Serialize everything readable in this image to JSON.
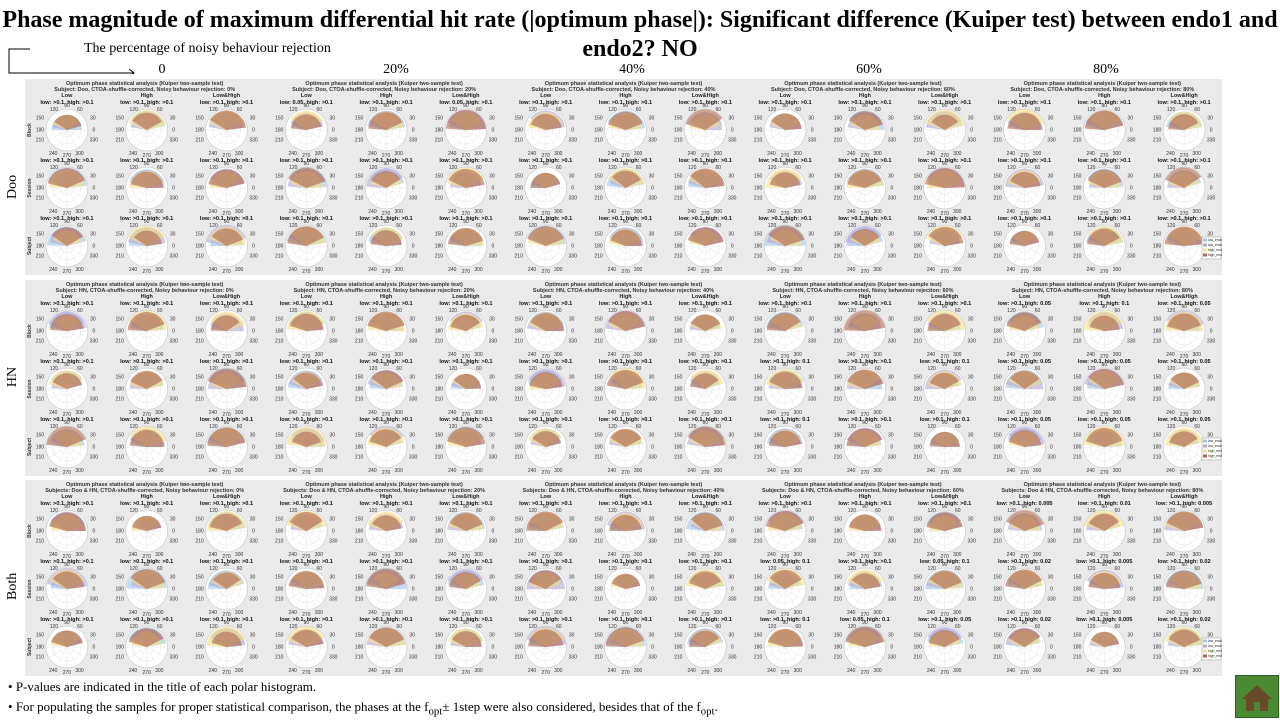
{
  "title": "Phase magnitude of maximum differential hit rate (|optimum phase|): Significant difference (Kuiper test) between endo1 and endo2? NO",
  "axis_label": "The percentage of noisy behaviour rejection",
  "percent_labels": [
    "0",
    "20%",
    "40%",
    "60%",
    "80%"
  ],
  "row_labels": [
    "Doo",
    "HN",
    "Both"
  ],
  "panel_header": "Optimum phase statistical analysis (Kuiper two-sample test)",
  "panel_subtitles": {
    "Doo": [
      "Subject: Doo, CTOA-shuffle-corrected, Noisy behaviour rejection: 0%",
      "Subject: Doo, CTOA-shuffle-corrected, Noisy behaviour rejection: 20%",
      "Subject: Doo, CTOA-shuffle-corrected, Noisy behaviour rejection: 40%",
      "Subject: Doo, CTOA-shuffle-corrected, Noisy behaviour rejection: 60%",
      "Subject: Doo, CTOA-shuffle-corrected, Noisy behaviour rejection: 80%"
    ],
    "HN": [
      "Subject: HN, CTOA-shuffle-corrected, Noisy behaviour rejection: 0%",
      "Subject: HN, CTOA-shuffle-corrected, Noisy behaviour rejection: 20%",
      "Subject: HN, CTOA-shuffle-corrected, Noisy behaviour rejection: 40%",
      "Subject: HN, CTOA-shuffle-corrected, Noisy behaviour rejection: 60%",
      "Subject: HN, CTOA-shuffle-corrected, Noisy behaviour rejection: 80%"
    ],
    "Both": [
      "Subjects: Doo & HN, CTOA-shuffle-corrected, Noisy behaviour rejection: 0%",
      "Subjects: Doo & HN, CTOA-shuffle-corrected, Noisy behaviour rejection: 20%",
      "Subjects: Doo & HN, CTOA-shuffle-corrected, Noisy behaviour rejection: 40%",
      "Subjects: Doo & HN, CTOA-shuffle-corrected, Noisy behaviour rejection: 60%",
      "Subjects: Doo & HN, CTOA-shuffle-corrected, Noisy behaviour rejection: 80%"
    ]
  },
  "condition_labels": [
    "Low",
    "High",
    "Low&High"
  ],
  "level_labels": [
    "Block",
    "Session",
    "Subject"
  ],
  "legend": [
    "low_endo1",
    "low_endo2",
    "high_endo1",
    "high_endo2"
  ],
  "colors": {
    "low_endo1": "#9fc5e8",
    "low_endo2": "#b4a7d6",
    "high_endo1": "#f6e08a",
    "high_endo2": "#b06a4e",
    "panel_bg": "#eaeaea",
    "home_button": "#4a8a32"
  },
  "angle_ticks": [
    "90",
    "60",
    "30",
    "0",
    "330",
    "300",
    "270",
    "240",
    "210",
    "180",
    "150",
    "120"
  ],
  "pvalues": {
    "Doo": [
      [
        ">0.1, high: >0.1",
        ">0.1, high: >0.1",
        ">0.1, high: >0.1",
        "0.05, high: >0.1",
        ">0.1, high: >0.1",
        "0.05, high: >0.1",
        ">0.1, high: >0.1",
        ">0.1, high: >0.1",
        ">0.1, high: >0.1",
        ">0.1, high: >0.1",
        ">0.1, high: >0.1",
        ">0.1, high: >0.1",
        ">0.1, high: >0.1",
        ">0.1, high: >0.1",
        ">0.1, high: >0.1"
      ],
      [
        ">0.1, high: >0.1",
        ">0.1, high: >0.1",
        ">0.1, high: >0.1",
        ">0.1, high: >0.1",
        ">0.1, high: >0.1",
        ">0.1, high: >0.1",
        ">0.1, high: >0.1",
        ">0.1, high: >0.1",
        ">0.1, high: >0.1",
        ">0.1, high: >0.1",
        ">0.1, high: >0.1",
        ">0.1, high: >0.1",
        ">0.1, high: >0.1",
        ">0.1, high: >0.1",
        ">0.1, high: >0.1"
      ],
      [
        ">0.1, high: >0.1",
        ">0.1, high: >0.1",
        ">0.1, high: >0.1",
        ">0.1, high: >0.1",
        ">0.1, high: >0.1",
        ">0.1, high: >0.1",
        ">0.1, high: >0.1",
        ">0.1, high: >0.1",
        ">0.1, high: >0.1",
        ">0.1, high: >0.1",
        ">0.1, high: >0.1",
        ">0.1, high: >0.1",
        ">0.1, high: >0.1",
        ">0.1, high: >0.1",
        ">0.1, high: >0.1"
      ]
    ],
    "HN": [
      [
        ">0.1, high: >0.1",
        ">0.1, high: >0.1",
        ">0.1, high: >0.1",
        ">0.1, high: >0.1",
        ">0.1, high: >0.1",
        ">0.1, high: >0.1",
        ">0.1, high: >0.1",
        ">0.1, high: >0.1",
        ">0.1, high: >0.1",
        ">0.1, high: >0.1",
        ">0.1, high: >0.1",
        ">0.1, high: >0.1",
        ">0.1, high: 0.05",
        ">0.1, high: 0.1",
        ">0.1, high: 0.05"
      ],
      [
        ">0.1, high: >0.1",
        ">0.1, high: >0.1",
        ">0.1, high: >0.1",
        ">0.1, high: >0.1",
        ">0.1, high: >0.1",
        ">0.1, high: >0.1",
        ">0.1, high: >0.1",
        ">0.1, high: >0.1",
        ">0.1, high: >0.1",
        ">0.1, high: 0.1",
        ">0.1, high: >0.1",
        ">0.1, high: 0.1",
        ">0.1, high: 0.05",
        ">0.1, high: 0.05",
        ">0.1, high: 0.05"
      ],
      [
        ">0.1, high: >0.1",
        ">0.1, high: >0.1",
        ">0.1, high: >0.1",
        ">0.1, high: >0.1",
        ">0.1, high: >0.1",
        ">0.1, high: >0.1",
        ">0.1, high: >0.1",
        ">0.1, high: >0.1",
        ">0.1, high: >0.1",
        ">0.1, high: 0.1",
        ">0.1, high: >0.1",
        ">0.1, high: 0.1",
        ">0.1, high: 0.05",
        ">0.1, high: 0.05",
        ">0.1, high: 0.05"
      ]
    ],
    "Both": [
      [
        ">0.1, high: >0.1",
        ">0.1, high: >0.1",
        ">0.1, high: >0.1",
        ">0.1, high: >0.1",
        ">0.1, high: >0.1",
        ">0.1, high: >0.1",
        ">0.1, high: >0.1",
        ">0.1, high: >0.1",
        ">0.1, high: >0.1",
        ">0.1, high: >0.1",
        ">0.1, high: >0.1",
        ">0.1, high: >0.1",
        ">0.1, high: 0.005",
        ">0.1, high: 0.01",
        ">0.1, high: 0.005"
      ],
      [
        ">0.1, high: >0.1",
        ">0.1, high: >0.1",
        ">0.1, high: >0.1",
        ">0.1, high: >0.1",
        ">0.1, high: >0.1",
        ">0.1, high: >0.1",
        ">0.1, high: >0.1",
        ">0.1, high: >0.1",
        ">0.1, high: >0.1",
        "0.05, high: 0.1",
        ">0.1, high: >0.1",
        "0.05, high: 0.1",
        ">0.1, high: 0.02",
        ">0.1, high: 0.005",
        ">0.1, high: 0.02"
      ],
      [
        ">0.1, high: >0.1",
        ">0.1, high: >0.1",
        ">0.1, high: >0.1",
        ">0.1, high: >0.1",
        ">0.1, high: >0.1",
        ">0.1, high: >0.1",
        ">0.1, high: >0.1",
        ">0.1, high: >0.1",
        ">0.1, high: >0.1",
        ">0.1, high: 0.1",
        "0.05, high: 0.1",
        ">0.1, high: 0.05",
        ">0.1, high: 0.02",
        ">0.1, high: 0.005",
        ">0.1, high: 0.02"
      ]
    ]
  },
  "bullets": {
    "b1": "P-values are indicated in the title of each polar histogram.",
    "b2a": "For populating  the samples for proper statistical comparison, the phases at the f",
    "b2sub1": "opt",
    "b2b": "± 1step were also considered, besides that of the f",
    "b2sub2": "opt",
    "b2c": "."
  }
}
